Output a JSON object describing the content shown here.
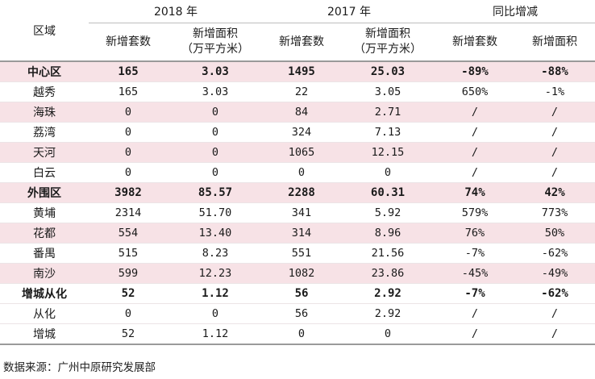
{
  "header": {
    "region": "区域",
    "y2018": "2018 年",
    "y2017": "2017 年",
    "yoy": "同比增减",
    "sub_units": "新增套数",
    "sub_area_l1": "新增面积",
    "sub_area_l2": "（万平方米）"
  },
  "rows": [
    {
      "name": "中心区",
      "u18": "165",
      "a18": "3.03",
      "u17": "1495",
      "a17": "25.03",
      "uy": "-89%",
      "ay": "-88%"
    },
    {
      "name": "越秀",
      "u18": "165",
      "a18": "3.03",
      "u17": "22",
      "a17": "3.05",
      "uy": "650%",
      "ay": "-1%"
    },
    {
      "name": "海珠",
      "u18": "0",
      "a18": "0",
      "u17": "84",
      "a17": "2.71",
      "uy": "/",
      "ay": "/"
    },
    {
      "name": "荔湾",
      "u18": "0",
      "a18": "0",
      "u17": "324",
      "a17": "7.13",
      "uy": "/",
      "ay": "/"
    },
    {
      "name": "天河",
      "u18": "0",
      "a18": "0",
      "u17": "1065",
      "a17": "12.15",
      "uy": "/",
      "ay": "/"
    },
    {
      "name": "白云",
      "u18": "0",
      "a18": "0",
      "u17": "0",
      "a17": "0",
      "uy": "/",
      "ay": "/"
    },
    {
      "name": "外围区",
      "u18": "3982",
      "a18": "85.57",
      "u17": "2288",
      "a17": "60.31",
      "uy": "74%",
      "ay": "42%"
    },
    {
      "name": "黄埔",
      "u18": "2314",
      "a18": "51.70",
      "u17": "341",
      "a17": "5.92",
      "uy": "579%",
      "ay": "773%"
    },
    {
      "name": "花都",
      "u18": "554",
      "a18": "13.40",
      "u17": "314",
      "a17": "8.96",
      "uy": "76%",
      "ay": "50%"
    },
    {
      "name": "番禺",
      "u18": "515",
      "a18": "8.23",
      "u17": "551",
      "a17": "21.56",
      "uy": "-7%",
      "ay": "-62%"
    },
    {
      "name": "南沙",
      "u18": "599",
      "a18": "12.23",
      "u17": "1082",
      "a17": "23.86",
      "uy": "-45%",
      "ay": "-49%"
    },
    {
      "name": "增城从化",
      "u18": "52",
      "a18": "1.12",
      "u17": "56",
      "a17": "2.92",
      "uy": "-7%",
      "ay": "-62%"
    },
    {
      "name": "从化",
      "u18": "0",
      "a18": "0",
      "u17": "56",
      "a17": "2.92",
      "uy": "/",
      "ay": "/"
    },
    {
      "name": "增城",
      "u18": "52",
      "a18": "1.12",
      "u17": "0",
      "a17": "0",
      "uy": "/",
      "ay": "/"
    }
  ],
  "source": "数据来源：广州中原研究发展部",
  "colors": {
    "summary_row": "#f7e2e6",
    "rule": "#9a9a9a"
  }
}
